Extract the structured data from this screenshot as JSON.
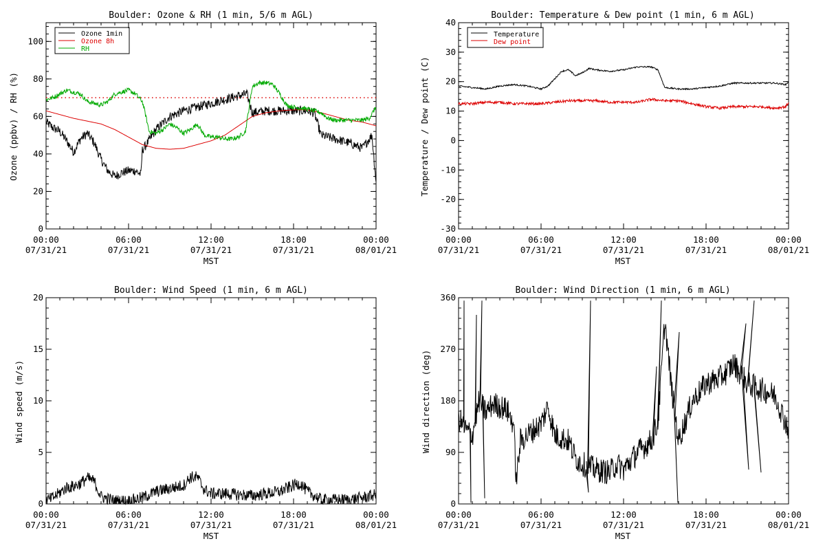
{
  "chart_data": [
    {
      "id": "p1",
      "type": "line",
      "title": "Boulder: Ozone & RH (1 min, 5/6 m AGL)",
      "xlabel": "MST",
      "ylabel": "Ozone (ppbv) / RH (%)",
      "xlim": [
        0,
        24
      ],
      "ylim": [
        0,
        110
      ],
      "yticks": [
        0,
        20,
        40,
        60,
        80,
        100
      ],
      "xtick_labels": [
        {
          "time": "00:00",
          "date": "07/31/21"
        },
        {
          "time": "06:00",
          "date": "07/31/21"
        },
        {
          "time": "12:00",
          "date": "07/31/21"
        },
        {
          "time": "18:00",
          "date": "07/31/21"
        },
        {
          "time": "00:00",
          "date": "08/01/21"
        }
      ],
      "legend": {
        "placement": "top-left",
        "entries": [
          {
            "label": "Ozone 1min",
            "color": "#000000"
          },
          {
            "label": "Ozone 8h",
            "color": "#dd0000"
          },
          {
            "label": "RH",
            "color": "#00aa00"
          }
        ]
      },
      "reference_line": {
        "y": 70,
        "color": "#dd0000",
        "style": "dotted"
      },
      "series": [
        {
          "name": "Ozone 1min",
          "color": "#000000",
          "noise": 2.5,
          "x": [
            0,
            0.5,
            1,
            1.5,
            2,
            2.5,
            3,
            3.5,
            4,
            4.5,
            5,
            5.5,
            6,
            6.5,
            6.9,
            7.0,
            7.3,
            8,
            9,
            10,
            11,
            12,
            13,
            14,
            14.6,
            15,
            16,
            17,
            18,
            19,
            19.5,
            20,
            21,
            22,
            23,
            23.7,
            24
          ],
          "y": [
            57,
            54,
            52,
            47,
            41,
            48,
            51,
            46,
            37,
            31,
            28,
            30,
            31,
            31,
            29,
            42,
            45,
            53,
            60,
            63,
            65,
            67,
            69,
            71,
            72,
            62,
            63,
            63,
            63,
            63,
            62,
            50,
            48,
            46,
            43,
            50,
            25
          ]
        },
        {
          "name": "Ozone 8h",
          "color": "#dd0000",
          "noise": 0,
          "x": [
            0,
            1,
            2,
            3,
            4,
            5,
            6,
            7,
            8,
            9,
            10,
            11,
            12,
            13,
            14,
            15,
            16,
            17,
            18,
            19,
            20,
            21,
            22,
            23,
            24
          ],
          "y": [
            63,
            61,
            59,
            57.5,
            56,
            53,
            49,
            45,
            43,
            42.5,
            43,
            45,
            47,
            50,
            55,
            60,
            62,
            63,
            63.5,
            63.5,
            62,
            60,
            58,
            57,
            55
          ]
        },
        {
          "name": "RH",
          "color": "#00aa00",
          "noise": 1.2,
          "x": [
            0,
            0.5,
            1,
            1.5,
            2,
            2.5,
            3,
            3.5,
            4,
            4.5,
            5,
            5.5,
            6,
            6.5,
            7,
            7.2,
            7.5,
            8,
            8.5,
            9,
            9.5,
            10,
            10.5,
            11,
            11.5,
            12,
            12.5,
            13,
            13.5,
            14,
            14.5,
            15,
            15.5,
            16,
            16.5,
            17,
            17.5,
            18,
            19,
            20,
            20.5,
            21,
            22,
            23,
            23.5,
            24
          ],
          "y": [
            69,
            70,
            72,
            74,
            73,
            72,
            68,
            67,
            66,
            68,
            72,
            73,
            74,
            72,
            68,
            62,
            52,
            51,
            53,
            56,
            54,
            51,
            53,
            56,
            50,
            49,
            49,
            48,
            48,
            49,
            52,
            76,
            78,
            78,
            77,
            72,
            66,
            65,
            64,
            62,
            59,
            58,
            58,
            58,
            59,
            65
          ]
        }
      ]
    },
    {
      "id": "p2",
      "type": "line",
      "title": "Boulder: Temperature & Dew point (1 min, 6 m AGL)",
      "xlabel": "MST",
      "ylabel": "Temperature / Dew point (C)",
      "xlim": [
        0,
        24
      ],
      "ylim": [
        -30,
        40
      ],
      "yticks": [
        -30,
        -20,
        -10,
        0,
        10,
        20,
        30,
        40
      ],
      "xtick_labels": [
        {
          "time": "00:00",
          "date": "07/31/21"
        },
        {
          "time": "06:00",
          "date": "07/31/21"
        },
        {
          "time": "12:00",
          "date": "07/31/21"
        },
        {
          "time": "18:00",
          "date": "07/31/21"
        },
        {
          "time": "00:00",
          "date": "08/01/21"
        }
      ],
      "legend": {
        "placement": "top-left",
        "entries": [
          {
            "label": "Temperature",
            "color": "#000000"
          },
          {
            "label": "Dew point",
            "color": "#dd0000"
          }
        ]
      },
      "series": [
        {
          "name": "Temperature",
          "color": "#000000",
          "noise": 0.25,
          "x": [
            0,
            1,
            2,
            3,
            4,
            5,
            6,
            6.5,
            7,
            7.5,
            8,
            8.5,
            9,
            9.5,
            10,
            11,
            12,
            13,
            14,
            14.5,
            15,
            16,
            17,
            18,
            19,
            20,
            21,
            22,
            23,
            23.8,
            24
          ],
          "y": [
            18.5,
            18,
            17.5,
            18.5,
            19,
            18.5,
            17.5,
            18.5,
            21,
            23.5,
            24,
            22,
            23,
            24.5,
            24,
            23.5,
            24,
            25,
            25,
            24,
            18,
            17.5,
            17.5,
            18,
            18.5,
            19.5,
            19.5,
            19.5,
            19.5,
            19,
            20
          ]
        },
        {
          "name": "Dew point",
          "color": "#dd0000",
          "noise": 0.45,
          "x": [
            0,
            1,
            2,
            3,
            4,
            5,
            6,
            7,
            8,
            9,
            10,
            11,
            12,
            13,
            14,
            15,
            16,
            17,
            18,
            19,
            20,
            21,
            22,
            23,
            23.8,
            24
          ],
          "y": [
            12.5,
            12.5,
            13,
            13,
            12.5,
            12.5,
            12.5,
            13,
            13.5,
            13.5,
            13.5,
            13,
            13,
            13,
            14,
            13.5,
            13.5,
            12.5,
            11.5,
            11,
            11.5,
            11.5,
            11.5,
            11,
            11.5,
            13
          ]
        }
      ]
    },
    {
      "id": "p3",
      "type": "line",
      "title": "Boulder: Wind Speed (1 min, 6 m AGL)",
      "xlabel": "MST",
      "ylabel": "Wind speed (m/s)",
      "xlim": [
        0,
        24
      ],
      "ylim": [
        0,
        20
      ],
      "yticks": [
        0,
        5,
        10,
        15,
        20
      ],
      "xtick_labels": [
        {
          "time": "00:00",
          "date": "07/31/21"
        },
        {
          "time": "06:00",
          "date": "07/31/21"
        },
        {
          "time": "12:00",
          "date": "07/31/21"
        },
        {
          "time": "18:00",
          "date": "07/31/21"
        },
        {
          "time": "00:00",
          "date": "08/01/21"
        }
      ],
      "series": [
        {
          "name": "Wind speed",
          "color": "#000000",
          "noise": 0.6,
          "floor": 0,
          "x": [
            0,
            0.5,
            1,
            1.5,
            2,
            2.5,
            3,
            3.5,
            4,
            5,
            6,
            7,
            8,
            9,
            10,
            10.5,
            11,
            11.5,
            12,
            13,
            14,
            15,
            16,
            17,
            18,
            18.5,
            19,
            20,
            21,
            22,
            23,
            24
          ],
          "y": [
            0.3,
            0.6,
            1.1,
            1.6,
            1.7,
            2.0,
            2.5,
            2.2,
            0.7,
            0.3,
            0.3,
            0.6,
            1.2,
            1.5,
            1.8,
            2.6,
            2.6,
            1.4,
            1.0,
            1.0,
            0.9,
            0.8,
            1.0,
            1.2,
            1.8,
            2.0,
            1.2,
            0.4,
            0.4,
            0.4,
            0.6,
            0.9
          ]
        }
      ]
    },
    {
      "id": "p4",
      "type": "line",
      "title": "Boulder: Wind Direction (1 min, 6 m AGL)",
      "xlabel": "MST",
      "ylabel": "Wind direction (deg)",
      "xlim": [
        0,
        24
      ],
      "ylim": [
        0,
        360
      ],
      "yticks": [
        0,
        90,
        180,
        270,
        360
      ],
      "xtick_labels": [
        {
          "time": "00:00",
          "date": "07/31/21"
        },
        {
          "time": "06:00",
          "date": "07/31/21"
        },
        {
          "time": "12:00",
          "date": "07/31/21"
        },
        {
          "time": "18:00",
          "date": "07/31/21"
        },
        {
          "time": "00:00",
          "date": "08/01/21"
        }
      ],
      "series": [
        {
          "name": "Wind direction",
          "color": "#000000",
          "noise": 22,
          "floor": 0,
          "ceil": 360,
          "x": [
            0,
            0.5,
            1,
            1.5,
            2,
            2.5,
            3,
            3.5,
            4,
            4.2,
            4.5,
            5,
            5.5,
            6,
            6.5,
            7,
            8,
            8.5,
            9,
            10,
            11,
            11.5,
            12,
            13,
            14,
            14.5,
            15,
            15.5,
            16,
            17,
            18,
            19,
            19.5,
            20,
            21,
            22,
            23,
            24
          ],
          "y": [
            150,
            130,
            120,
            180,
            160,
            175,
            170,
            165,
            140,
            40,
            110,
            120,
            130,
            140,
            170,
            120,
            110,
            80,
            70,
            60,
            55,
            70,
            60,
            90,
            110,
            140,
            320,
            200,
            110,
            180,
            210,
            220,
            230,
            245,
            210,
            200,
            190,
            130
          ]
        }
      ],
      "spikes": [
        {
          "x": 0.4,
          "y": 355
        },
        {
          "x": 0.9,
          "y": 2
        },
        {
          "x": 1.3,
          "y": 330
        },
        {
          "x": 1.7,
          "y": 355
        },
        {
          "x": 1.9,
          "y": 10
        },
        {
          "x": 9.6,
          "y": 355
        },
        {
          "x": 9.45,
          "y": 20
        },
        {
          "x": 14.4,
          "y": 240
        },
        {
          "x": 14.75,
          "y": 355
        },
        {
          "x": 15.95,
          "y": 2
        },
        {
          "x": 16.05,
          "y": 300
        },
        {
          "x": 20.9,
          "y": 315
        },
        {
          "x": 21.1,
          "y": 60
        },
        {
          "x": 21.5,
          "y": 355
        },
        {
          "x": 22.0,
          "y": 55
        }
      ]
    }
  ]
}
